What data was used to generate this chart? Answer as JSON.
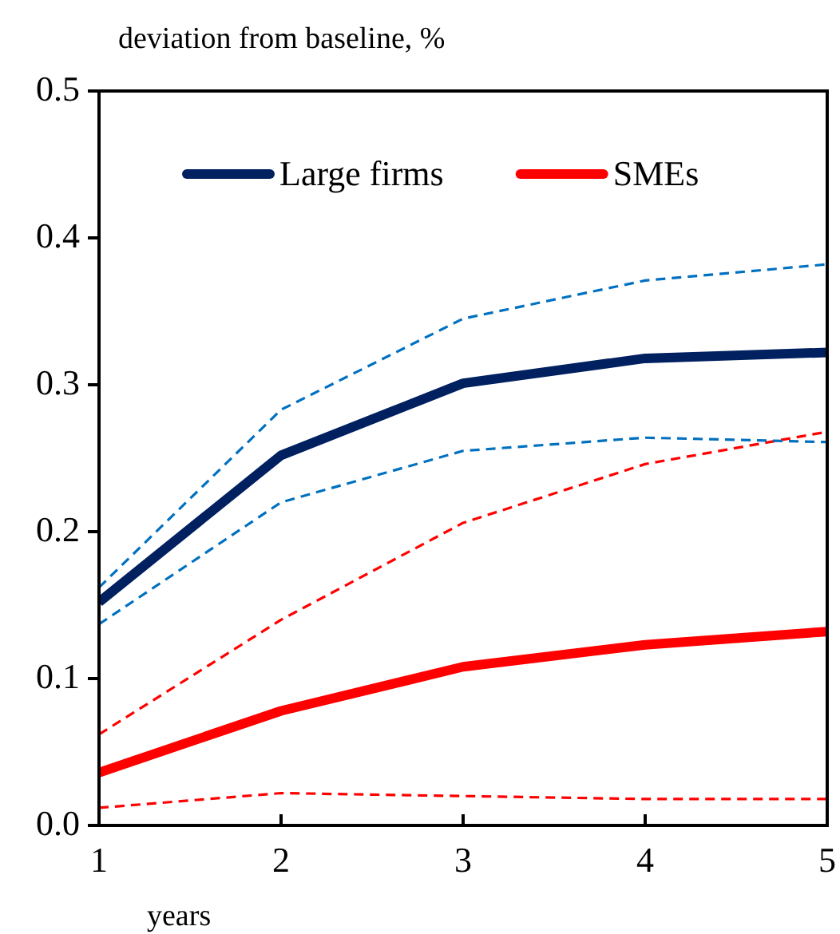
{
  "chart_data": {
    "type": "line",
    "ylabel": "deviation from baseline, %",
    "xlabel": "years",
    "x": [
      1,
      2,
      3,
      4,
      5
    ],
    "xlim": [
      1,
      5
    ],
    "xticks": [
      1,
      2,
      3,
      4,
      5
    ],
    "ylim": [
      0,
      0.5
    ],
    "yticks": [
      {
        "value": 0,
        "label": "0.0"
      },
      0.1,
      0.2,
      0.3,
      0.4,
      0.5
    ],
    "grid": false,
    "legend": "top",
    "marker": "none",
    "series": [
      {
        "color": "#0070c0",
        "line_style": "dashed",
        "values": [
          0.162,
          0.283,
          0.345,
          0.371,
          0.382
        ]
      },
      {
        "color": "#0070c0",
        "line_style": "dashed",
        "values": [
          0.137,
          0.22,
          0.255,
          0.264,
          0.261
        ]
      },
      {
        "color": "#ff0000",
        "line_style": "dashed",
        "values": [
          0.062,
          0.14,
          0.206,
          0.246,
          0.268
        ]
      },
      {
        "color": "#ff0000",
        "line_style": "dashed",
        "values": [
          0.012,
          0.022,
          0.02,
          0.018,
          0.018
        ]
      },
      {
        "name": "Large firms",
        "color": "#002060",
        "line_style": "solid",
        "values": [
          0.152,
          0.252,
          0.301,
          0.318,
          0.322
        ]
      },
      {
        "name": "SMEs",
        "color": "#ff0000",
        "line_style": "solid",
        "values": [
          0.036,
          0.078,
          0.108,
          0.123,
          0.132
        ]
      }
    ]
  }
}
